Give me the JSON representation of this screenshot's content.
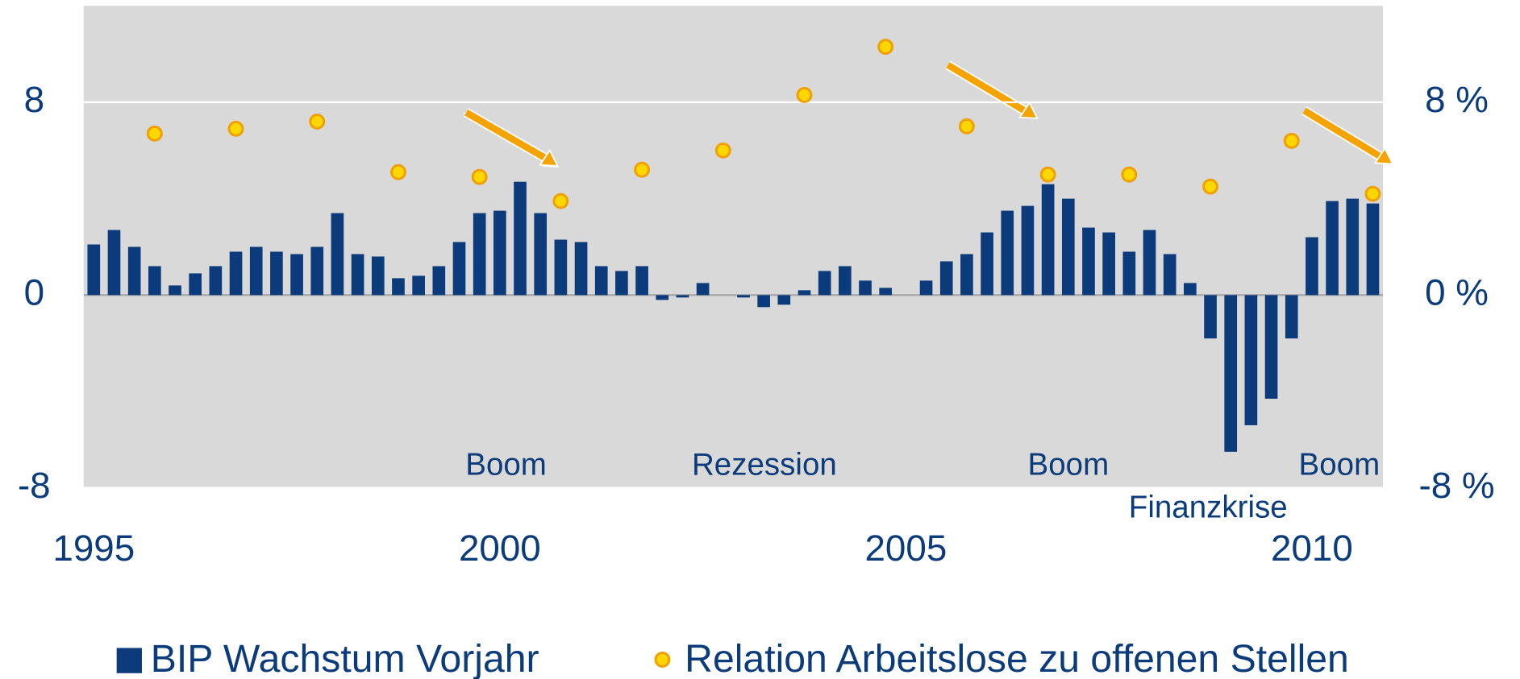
{
  "chart_data": {
    "type": "bar",
    "categories": [
      "1995",
      null,
      null,
      null,
      null,
      null,
      null,
      null,
      null,
      null,
      null,
      null,
      null,
      null,
      null,
      null,
      null,
      null,
      null,
      null,
      "2000",
      null,
      null,
      null,
      null,
      null,
      null,
      null,
      null,
      null,
      null,
      null,
      null,
      null,
      null,
      null,
      null,
      null,
      null,
      null,
      "2005",
      null,
      null,
      null,
      null,
      null,
      null,
      null,
      null,
      null,
      null,
      null,
      null,
      null,
      null,
      null,
      null,
      null,
      null,
      null,
      "2010",
      null,
      null,
      null
    ],
    "series": [
      {
        "name": "BIP Wachstum Vorjahr",
        "type": "bar",
        "color": "#0b3b7a",
        "values": [
          2.1,
          2.7,
          2.0,
          1.2,
          0.4,
          0.9,
          1.2,
          1.8,
          2.0,
          1.8,
          1.7,
          2.0,
          3.4,
          1.7,
          1.6,
          0.7,
          0.8,
          1.2,
          2.2,
          3.4,
          3.5,
          4.7,
          3.4,
          2.3,
          2.2,
          1.2,
          1.0,
          1.2,
          -0.2,
          -0.1,
          0.5,
          0.0,
          -0.1,
          -0.5,
          -0.4,
          0.2,
          1.0,
          1.2,
          0.6,
          0.3,
          0.0,
          0.6,
          1.4,
          1.7,
          2.6,
          3.5,
          3.7,
          4.6,
          4.0,
          2.8,
          2.6,
          1.8,
          2.7,
          1.7,
          0.5,
          -1.8,
          -6.5,
          -5.4,
          -4.3,
          -1.8,
          2.4,
          3.9,
          4.0,
          3.8
        ]
      },
      {
        "name": "Relation Arbeitslose zu offenen Stellen",
        "type": "scatter",
        "axis": "y2",
        "color": "#ffd700",
        "edge_color": "#f0a000",
        "values": [
          null,
          null,
          null,
          6.7,
          null,
          null,
          null,
          6.9,
          null,
          null,
          null,
          7.2,
          null,
          null,
          null,
          5.1,
          null,
          null,
          null,
          4.9,
          null,
          null,
          null,
          3.9,
          null,
          null,
          null,
          5.2,
          null,
          null,
          null,
          6.0,
          null,
          null,
          null,
          8.3,
          null,
          null,
          null,
          10.3,
          null,
          null,
          null,
          7.0,
          null,
          null,
          null,
          5.0,
          null,
          null,
          null,
          5.0,
          null,
          null,
          null,
          4.5,
          null,
          null,
          null,
          6.4,
          null,
          null,
          null,
          4.2
        ]
      }
    ],
    "ylim": [
      -8,
      12
    ],
    "yticks": [
      -8,
      0,
      8
    ],
    "y2lim": [
      -8,
      12
    ],
    "y2ticks": [
      {
        "value": -8,
        "label": "-8 %"
      },
      {
        "value": 0,
        "label": "0 %"
      },
      {
        "value": 8,
        "label": "8 %"
      }
    ],
    "grid": true,
    "annotations": [
      "Boom",
      "Rezession",
      "Boom",
      "Boom",
      "Finanzkrise"
    ]
  }
}
